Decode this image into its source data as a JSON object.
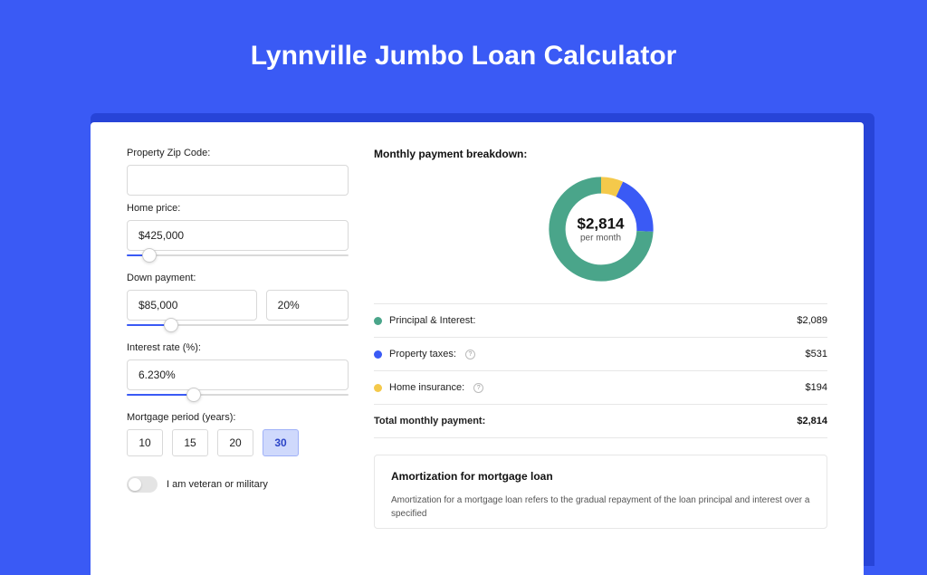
{
  "title": "Lynnville Jumbo Loan Calculator",
  "colors": {
    "page_bg": "#3a5af5",
    "panel_shadow": "#2744d8",
    "panel_bg": "#ffffff",
    "slider_fill": "#3a5af5",
    "period_active_bg": "#cfd9fc"
  },
  "form": {
    "zip": {
      "label": "Property Zip Code:",
      "value": ""
    },
    "home_price": {
      "label": "Home price:",
      "value": "$425,000",
      "slider_pct": 10
    },
    "down_payment": {
      "label": "Down payment:",
      "value": "$85,000",
      "pct_value": "20%",
      "slider_pct": 20
    },
    "interest_rate": {
      "label": "Interest rate (%):",
      "value": "6.230%",
      "slider_pct": 30
    },
    "mortgage_period": {
      "label": "Mortgage period (years):",
      "options": [
        "10",
        "15",
        "20",
        "30"
      ],
      "selected_index": 3
    },
    "veteran": {
      "label": "I am veteran or military",
      "checked": false
    }
  },
  "breakdown": {
    "title": "Monthly payment breakdown:",
    "donut": {
      "amount": "$2,814",
      "sub": "per month",
      "segments": [
        {
          "label": "Principal & Interest:",
          "value": 2089,
          "display": "$2,089",
          "color": "#4aa58a",
          "has_info": false
        },
        {
          "label": "Property taxes:",
          "value": 531,
          "display": "$531",
          "color": "#3a5af5",
          "has_info": true
        },
        {
          "label": "Home insurance:",
          "value": 194,
          "display": "$194",
          "color": "#f4c94b",
          "has_info": true
        }
      ],
      "track_color": "#eeeeee",
      "thickness": 18
    },
    "total": {
      "label": "Total monthly payment:",
      "display": "$2,814"
    }
  },
  "amortization": {
    "title": "Amortization for mortgage loan",
    "text": "Amortization for a mortgage loan refers to the gradual repayment of the loan principal and interest over a specified"
  }
}
